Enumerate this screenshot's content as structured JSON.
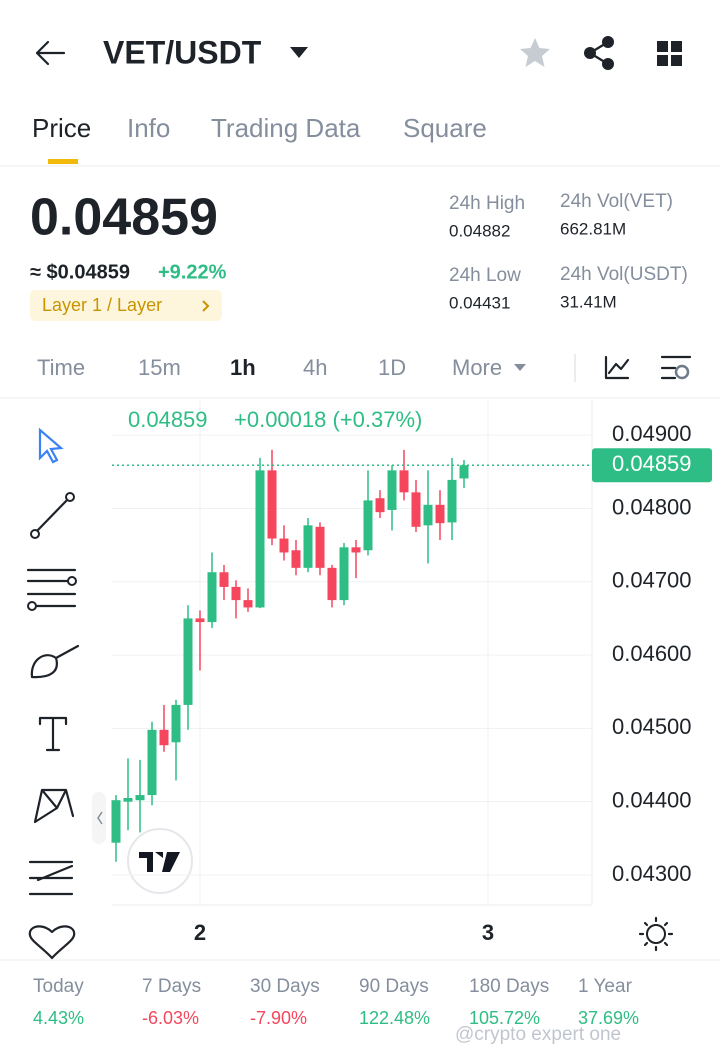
{
  "header": {
    "pair": "VET/USDT"
  },
  "tabs": [
    "Price",
    "Info",
    "Trading Data",
    "Square"
  ],
  "price": {
    "last": "0.04859",
    "fiat": "≈ $0.04859",
    "change": "+9.22%",
    "tag": "Layer 1 / Layer"
  },
  "stats": [
    {
      "label": "24h High",
      "value": "0.04882"
    },
    {
      "label": "24h Vol(VET)",
      "value": "662.81M"
    },
    {
      "label": "24h Low",
      "value": "0.04431"
    },
    {
      "label": "24h Vol(USDT)",
      "value": "31.41M"
    }
  ],
  "intervals": [
    "Time",
    "15m",
    "1h",
    "4h",
    "1D",
    "More"
  ],
  "chart_data": {
    "type": "candlestick",
    "caption": [
      "0.04859",
      "+0.00018 (+0.37%)"
    ],
    "categories": [
      null,
      null,
      null,
      null,
      null,
      null,
      null,
      null,
      null,
      null,
      null,
      null,
      null,
      null,
      null,
      null,
      null,
      null,
      null,
      null,
      null,
      null,
      null,
      null,
      null,
      null,
      null,
      null,
      null,
      null
    ],
    "open": [
      0.04344,
      0.044,
      0.04402,
      0.04409,
      0.04498,
      0.04481,
      0.04532,
      0.0465,
      0.04645,
      0.04713,
      0.04693,
      0.04675,
      0.04665,
      0.04852,
      0.04759,
      0.04743,
      0.04719,
      0.04775,
      0.04719,
      0.04675,
      0.04747,
      0.04743,
      0.04814,
      0.04798,
      0.04852,
      0.04822,
      0.04777,
      0.04805,
      0.04781,
      0.04841
    ],
    "high": [
      0.04409,
      0.04459,
      0.04457,
      0.04509,
      0.04532,
      0.04539,
      0.04668,
      0.04661,
      0.0474,
      0.04723,
      0.04702,
      0.04691,
      0.04869,
      0.0488,
      0.04777,
      0.04757,
      0.04787,
      0.04781,
      0.04723,
      0.04753,
      0.04757,
      0.04852,
      0.04825,
      0.04859,
      0.0488,
      0.04839,
      0.04852,
      0.04825,
      0.04869,
      0.04866
    ],
    "low": [
      0.04318,
      0.04361,
      0.04358,
      0.04395,
      0.04468,
      0.04429,
      0.04498,
      0.04579,
      0.04637,
      0.04675,
      0.0465,
      0.04659,
      0.04664,
      0.0475,
      0.04729,
      0.04709,
      0.04713,
      0.04709,
      0.04665,
      0.04668,
      0.04705,
      0.04736,
      0.04787,
      0.0477,
      0.04811,
      0.04768,
      0.04725,
      0.04757,
      0.04757,
      0.04828
    ],
    "close": [
      0.04402,
      0.04405,
      0.04409,
      0.04498,
      0.04477,
      0.04532,
      0.0465,
      0.04645,
      0.04713,
      0.04693,
      0.04675,
      0.04665,
      0.04852,
      0.04759,
      0.0474,
      0.04719,
      0.04777,
      0.04719,
      0.04675,
      0.04747,
      0.0474,
      0.04811,
      0.04795,
      0.04852,
      0.04822,
      0.04775,
      0.04805,
      0.0478,
      0.04839,
      0.04859
    ],
    "up_color": "#2ebd85",
    "down_color": "#f6465d",
    "last_price": 0.04859,
    "ylim": [
      0.04259,
      0.04948
    ],
    "yticks": [
      {
        "value": 0.049,
        "label": "0.04900"
      },
      {
        "value": 0.048,
        "label": "0.04800"
      },
      {
        "value": 0.047,
        "label": "0.04700"
      },
      {
        "value": 0.046,
        "label": "0.04600"
      },
      {
        "value": 0.045,
        "label": "0.04500"
      },
      {
        "value": 0.044,
        "label": "0.04400"
      },
      {
        "value": 0.043,
        "label": "0.04300"
      }
    ],
    "xticks": [
      {
        "value": 7,
        "label": "2"
      },
      {
        "value": 31,
        "label": "3"
      }
    ],
    "grid": true
  },
  "performance": [
    {
      "label": "Today",
      "value": "4.43%"
    },
    {
      "label": "7 Days",
      "value": "-6.03%"
    },
    {
      "label": "30 Days",
      "value": "-7.90%"
    },
    {
      "label": "90 Days",
      "value": "122.48%"
    },
    {
      "label": "180 Days",
      "value": "105.72%"
    },
    {
      "label": "1 Year",
      "value": "37.69%"
    }
  ],
  "watermark": "@crypto expert one"
}
